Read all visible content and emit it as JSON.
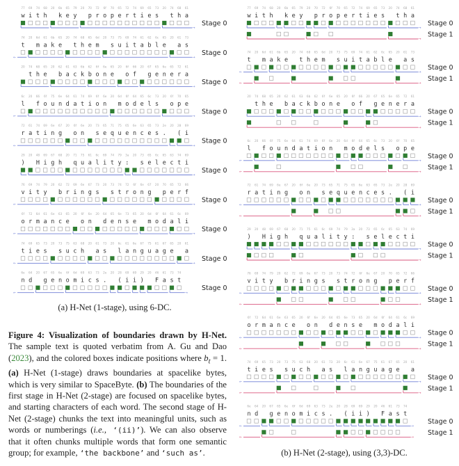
{
  "colors": {
    "boundary": "#2f7d32",
    "empty": "#9a9a9a",
    "stage0_line": "#6f7fd6",
    "stage1_line": "#d9567e",
    "hex": "#aaaaaa",
    "char": "#333333"
  },
  "rows": [
    {
      "text": "with key properties tha",
      "hex": "77 69 74 68 20 6b 65 79 20 70 72 6f 70 65 72 74 69 65 73 20 74 68 61"
    },
    {
      "text": "t make them suitable as",
      "hex": "74 20 6d 61 6b 65 20 74 68 65 6d 20 73 75 69 74 61 62 6c 65 20 61 73"
    },
    {
      "text": " the backbone of genera",
      "hex": "20 74 68 65 20 62 61 63 6b 62 6f 6e 65 20 6f 66 20 67 65 6e 65 72 61"
    },
    {
      "text": "l foundation models ope",
      "hex": "6c 20 66 6f 75 6e 64 61 74 69 6f 6e 20 6d 6f 64 65 6c 73 20 6f 70 65"
    },
    {
      "text": "rating on sequences. (i",
      "hex": "72 61 74 69 6e 67 20 6f 6e 20 73 65 71 75 65 6e 63 65 73 2e 20 28 69"
    },
    {
      "text": ") High quality: selecti",
      "hex": "29 20 48 69 67 68 20 71 75 61 6c 69 74 79 3a 20 73 65 6c 65 63 74 69"
    },
    {
      "text": "vity brings strong perf",
      "hex": "76 69 74 79 20 62 72 69 6e 67 73 20 73 74 72 6f 6e 67 20 70 65 72 66"
    },
    {
      "text": "ormance on dense modali",
      "hex": "6f 72 6d 61 6e 63 65 20 6f 6e 20 64 65 6e 73 65 20 6d 6f 64 61 6c 69"
    },
    {
      "text": "ties such as language a",
      "hex": "74 69 65 73 20 73 75 63 68 20 61 73 20 6c 61 6e 67 75 61 67 65 20 61"
    },
    {
      "text": "nd genomics. (ii) Fast",
      "hex": "6e 64 20 67 65 6e 6f 6d 69 63 73 2e 20 28 69 69 29 20 46 61 73 74"
    }
  ],
  "panel_a": {
    "caption": "(a) H-Net (1-stage), using 6-DC.",
    "stage_labels": [
      "Stage 0"
    ],
    "stage0": [
      [
        0,
        4,
        8,
        19
      ],
      [
        1,
        6,
        11,
        20
      ],
      [
        0,
        4,
        9,
        13,
        16
      ],
      [
        1,
        12,
        19
      ],
      [
        6,
        9,
        20,
        21
      ],
      [
        0,
        1,
        6,
        14,
        15
      ],
      [
        4,
        11,
        18
      ],
      [
        7,
        10,
        16,
        20
      ],
      [
        4,
        9,
        12,
        21
      ],
      [
        2,
        6,
        12,
        13,
        15,
        16,
        17,
        20
      ]
    ]
  },
  "panel_b": {
    "caption": "(b) H-Net (2-stage), using (3,3)-DC.",
    "stage_labels": [
      "Stage 0",
      "Stage 1"
    ],
    "stage0": [
      [
        0,
        4,
        5,
        8,
        9,
        11,
        19
      ],
      [
        1,
        3,
        6,
        11,
        13,
        14,
        20
      ],
      [
        0,
        4,
        6,
        9,
        13,
        16,
        17
      ],
      [
        1,
        4,
        12,
        14,
        15,
        19,
        21
      ],
      [
        6,
        9,
        11,
        12,
        20,
        21,
        22
      ],
      [
        0,
        1,
        2,
        3,
        6,
        7,
        14,
        15,
        17,
        18
      ],
      [
        4,
        6,
        7,
        11,
        13,
        14,
        18,
        19,
        20
      ],
      [
        7,
        10,
        12,
        13,
        16,
        18,
        19,
        20
      ],
      [
        4,
        6,
        9,
        12,
        14,
        21
      ],
      [
        2,
        3,
        6,
        12,
        13,
        14,
        15,
        16,
        17,
        18,
        19,
        20
      ]
    ],
    "stage1": [
      [
        0,
        8,
        19
      ],
      [
        1,
        6,
        11,
        20
      ],
      [
        0,
        13,
        16
      ],
      [
        1,
        12,
        19
      ],
      [
        6,
        9,
        20,
        21
      ],
      [
        0,
        6,
        14
      ],
      [
        4,
        11,
        18
      ],
      [
        7,
        10,
        16
      ],
      [
        4,
        12,
        21
      ],
      [
        2,
        12,
        13,
        16
      ]
    ]
  },
  "figure_caption": {
    "label": "Figure 4: ",
    "title": "Visualization of boundaries drawn by H-Net.",
    "t1": " The sample text is quoted verbatim from A. Gu and Dao (",
    "cite": "2023",
    "t2": "), and the colored boxes indicate positions where ",
    "var": "b",
    "sub": "t",
    "t3": " = 1. ",
    "a": "(a)",
    "t4": " H-Net (1-stage) draws boundaries at spacelike bytes, which is very similar to SpaceByte. ",
    "b": "(b)",
    "t5": " The boundaries of the first stage in H-Net (2-stage) are focused on spacelike bytes, and starting characters of each word. The second stage of H-Net (2-stage) chunks the text into meaningful units, such as words or numberings (",
    "ie": "i.e.,",
    "code1": " ‘(ii)’",
    "t6": "). We can also observe that it often chunks multiple words that form one semantic group; for example, ",
    "code2": "‘the backbone’",
    "t7": " and ",
    "code3": "‘such as’",
    "t8": "."
  }
}
